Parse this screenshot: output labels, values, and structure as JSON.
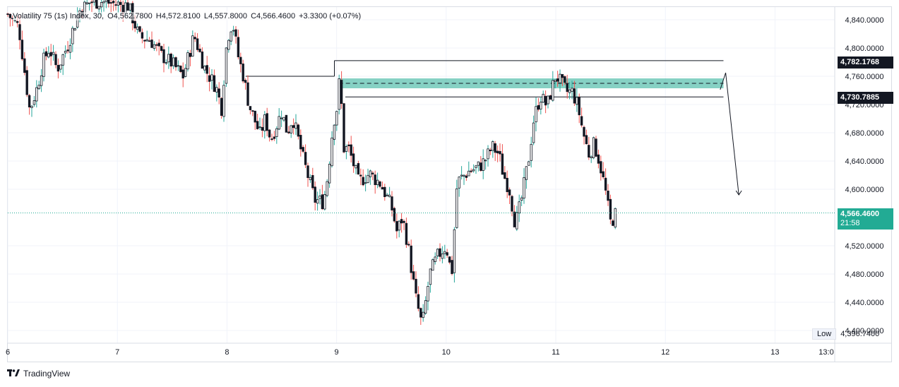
{
  "legend": {
    "symbol": "Volatility 75 (1s) Index, 30,",
    "open": "O4,562.7800",
    "high": "H4,572.8100",
    "low": "L4,557.8000",
    "close": "C4,566.4600",
    "change": "+3.3300 (+0.07%)"
  },
  "price_tags": {
    "last_price": "4,566.4600",
    "countdown": "21:58",
    "level_high": "4,782.1768",
    "level_mid": "4,730.7885"
  },
  "low_marker": {
    "label": "Low",
    "value": "4,396.7400"
  },
  "footer": {
    "brand": "TradingView"
  },
  "colors": {
    "up": "#131722",
    "down": "#131722",
    "up_wick": "#26a69a",
    "down_wick": "#ef5350",
    "zone": "#22ab94",
    "last_price": "#22ab94"
  },
  "chart_data": {
    "type": "candlestick",
    "x_axis_labels": [
      "6",
      "7",
      "8",
      "9",
      "10",
      "11",
      "12",
      "13",
      "13:0"
    ],
    "y_axis_labels": [
      "4,840.0000",
      "4,800.0000",
      "4,760.0000",
      "4,720.0000",
      "4,680.0000",
      "4,640.0000",
      "4,600.0000",
      "4,520.0000",
      "4,480.0000",
      "4,440.0000",
      "4,400.0000"
    ],
    "ylim": [
      4388,
      4857
    ],
    "xlim": [
      6,
      13.5
    ],
    "last_price": 4566.46,
    "levels": [
      4782.1768,
      4730.7885
    ],
    "zone": [
      4743,
      4757
    ],
    "zone_midline": 4750,
    "forecast_arrow": [
      [
        12.5,
        4741
      ],
      [
        12.55,
        4765
      ],
      [
        12.67,
        4592
      ]
    ],
    "anchor_lines": [
      [
        8.17,
        4760,
        8.98
      ],
      [
        8.98,
        4782.18,
        12.53
      ],
      [
        9.08,
        4730.79,
        12.53
      ]
    ],
    "series_path": [
      [
        6.0,
        4848
      ],
      [
        6.1,
        4830
      ],
      [
        6.2,
        4712
      ],
      [
        6.27,
        4745
      ],
      [
        6.32,
        4780
      ],
      [
        6.38,
        4800
      ],
      [
        6.45,
        4770
      ],
      [
        6.55,
        4805
      ],
      [
        6.65,
        4852
      ],
      [
        6.75,
        4865
      ],
      [
        6.85,
        4866
      ],
      [
        7.0,
        4862
      ],
      [
        7.1,
        4860
      ],
      [
        7.2,
        4815
      ],
      [
        7.3,
        4812
      ],
      [
        7.4,
        4790
      ],
      [
        7.5,
        4778
      ],
      [
        7.6,
        4760
      ],
      [
        7.7,
        4818
      ],
      [
        7.8,
        4770
      ],
      [
        7.9,
        4745
      ],
      [
        7.95,
        4715
      ],
      [
        8.0,
        4812
      ],
      [
        8.05,
        4838
      ],
      [
        8.1,
        4790
      ],
      [
        8.15,
        4760
      ],
      [
        8.2,
        4720
      ],
      [
        8.3,
        4678
      ],
      [
        8.35,
        4700
      ],
      [
        8.4,
        4670
      ],
      [
        8.5,
        4710
      ],
      [
        8.55,
        4680
      ],
      [
        8.6,
        4702
      ],
      [
        8.7,
        4640
      ],
      [
        8.8,
        4585
      ],
      [
        8.88,
        4582
      ],
      [
        8.92,
        4620
      ],
      [
        8.97,
        4695
      ],
      [
        9.0,
        4712
      ],
      [
        9.03,
        4760
      ],
      [
        9.07,
        4650
      ],
      [
        9.1,
        4662
      ],
      [
        9.15,
        4638
      ],
      [
        9.2,
        4610
      ],
      [
        9.3,
        4622
      ],
      [
        9.4,
        4608
      ],
      [
        9.5,
        4576
      ],
      [
        9.55,
        4540
      ],
      [
        9.6,
        4560
      ],
      [
        9.65,
        4522
      ],
      [
        9.72,
        4448
      ],
      [
        9.78,
        4406
      ],
      [
        9.85,
        4480
      ],
      [
        9.92,
        4505
      ],
      [
        10.0,
        4520
      ],
      [
        10.05,
        4478
      ],
      [
        10.1,
        4610
      ],
      [
        10.2,
        4625
      ],
      [
        10.3,
        4632
      ],
      [
        10.35,
        4640
      ],
      [
        10.42,
        4660
      ],
      [
        10.48,
        4650
      ],
      [
        10.52,
        4622
      ],
      [
        10.58,
        4598
      ],
      [
        10.63,
        4550
      ],
      [
        10.68,
        4580
      ],
      [
        10.75,
        4640
      ],
      [
        10.8,
        4700
      ],
      [
        10.86,
        4732
      ],
      [
        10.92,
        4718
      ],
      [
        11.0,
        4762
      ],
      [
        11.05,
        4750
      ],
      [
        11.1,
        4738
      ],
      [
        11.15,
        4738
      ],
      [
        11.2,
        4718
      ],
      [
        11.25,
        4680
      ],
      [
        11.3,
        4650
      ],
      [
        11.35,
        4664
      ],
      [
        11.4,
        4638
      ],
      [
        11.45,
        4600
      ],
      [
        11.5,
        4552
      ],
      [
        11.55,
        4566.46
      ]
    ]
  }
}
